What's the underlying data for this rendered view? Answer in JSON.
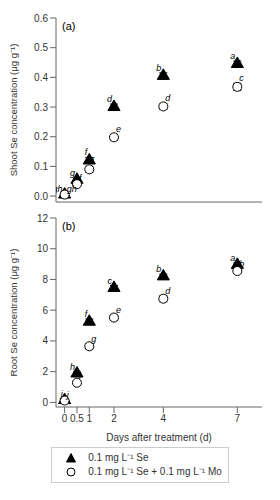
{
  "chart_data": [
    {
      "type": "scatter",
      "title": "(a)",
      "ylabel": "Shoot Se concentration (μg g⁻¹)",
      "x": [
        0,
        0.5,
        1,
        2,
        4,
        7
      ],
      "xlim": [
        -0.35,
        8.0
      ],
      "xticks": [
        0,
        0.5,
        1,
        2,
        4,
        7
      ],
      "ylim": [
        -0.02,
        0.6
      ],
      "yticks": [
        {
          "value": 0.0,
          "label": "0.0"
        },
        0.1,
        0.2,
        0.3,
        0.4,
        0.5,
        0.6
      ],
      "tick_labels": "y",
      "series": [
        {
          "color": "#000000",
          "marker": "triangle",
          "values": [
            0.005,
            0.055,
            0.12,
            0.3,
            0.405,
            0.445
          ],
          "errors": [
            0.003,
            0.005,
            0.01,
            0.01,
            0.01,
            0.01
          ],
          "annotations": [
            "gh",
            "g",
            "f",
            "d",
            "b",
            "a"
          ]
        },
        {
          "color": "#000000",
          "marker": "open_circle",
          "values": [
            0.005,
            0.04,
            0.09,
            0.198,
            0.302,
            0.368
          ],
          "errors": [
            0.003,
            0.005,
            0.01,
            0.01,
            0.01,
            0.012
          ],
          "annotations": [
            "gh",
            "f",
            "f",
            "e",
            "d",
            "c"
          ]
        }
      ]
    },
    {
      "type": "scatter",
      "title": "(b)",
      "xlabel": "Days after treatment (d)",
      "ylabel": "Root Se concentration (μg g⁻¹)",
      "x": [
        0,
        0.5,
        1,
        2,
        4,
        7
      ],
      "xlim": [
        -0.35,
        8.0
      ],
      "xticks": [
        0,
        0.5,
        1,
        2,
        4,
        7
      ],
      "ylim": [
        -0.3,
        12
      ],
      "yticks": [
        0,
        2,
        4,
        6,
        8,
        10,
        12
      ],
      "legend": "bottom",
      "series": [
        {
          "name": "0.1 mg L⁻¹ Se",
          "color": "#000000",
          "marker": "triangle",
          "values": [
            0.15,
            1.88,
            5.25,
            7.45,
            8.2,
            8.95
          ],
          "errors": [
            0.05,
            0.1,
            0.18,
            0.15,
            0.15,
            0.12
          ],
          "annotations": [
            "j",
            "h",
            "f",
            "c",
            "b",
            "a"
          ]
        },
        {
          "name": "0.1 mg L⁻¹ Se + 0.1 mg L⁻¹ Mo",
          "color": "#000000",
          "marker": "open_circle",
          "values": [
            0.12,
            1.28,
            3.65,
            5.52,
            6.75,
            8.55
          ],
          "errors": [
            0.05,
            0.1,
            0.18,
            0.18,
            0.2,
            0.15
          ],
          "annotations": [
            "j",
            "i",
            "g",
            "e",
            "d",
            "b"
          ]
        }
      ]
    }
  ]
}
